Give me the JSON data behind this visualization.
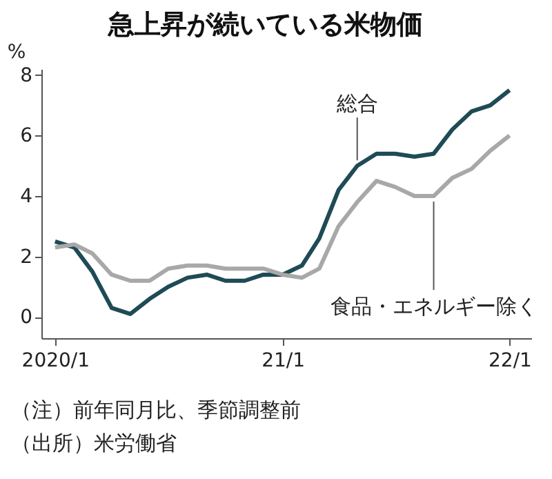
{
  "chart_data": {
    "type": "line",
    "title": "急上昇が続いている米物価",
    "ylabel": "%",
    "x": [
      "2020-01",
      "2020-02",
      "2020-03",
      "2020-04",
      "2020-05",
      "2020-06",
      "2020-07",
      "2020-08",
      "2020-09",
      "2020-10",
      "2020-11",
      "2020-12",
      "2021-01",
      "2021-02",
      "2021-03",
      "2021-04",
      "2021-05",
      "2021-06",
      "2021-07",
      "2021-08",
      "2021-09",
      "2021-10",
      "2021-11",
      "2021-12",
      "2022-01"
    ],
    "series": [
      {
        "name": "総合",
        "color": "#1e4b55",
        "values": [
          2.5,
          2.3,
          1.5,
          0.3,
          0.1,
          0.6,
          1.0,
          1.3,
          1.4,
          1.2,
          1.2,
          1.4,
          1.4,
          1.7,
          2.6,
          4.2,
          5.0,
          5.4,
          5.4,
          5.3,
          5.4,
          6.2,
          6.8,
          7.0,
          7.5
        ]
      },
      {
        "name": "食品・エネルギー除く",
        "color": "#a8a8a8",
        "values": [
          2.3,
          2.4,
          2.1,
          1.4,
          1.2,
          1.2,
          1.6,
          1.7,
          1.7,
          1.6,
          1.6,
          1.6,
          1.4,
          1.3,
          1.6,
          3.0,
          3.8,
          4.5,
          4.3,
          4.0,
          4.0,
          4.6,
          4.9,
          5.5,
          6.0
        ]
      }
    ],
    "xlim": [
      "2019-12-10",
      "2022-02-05"
    ],
    "xticks": [
      {
        "value": "2020-01",
        "label": "2020/1"
      },
      {
        "value": "2021-01",
        "label": "21/1"
      },
      {
        "value": "2022-01",
        "label": "22/1"
      }
    ],
    "ylim": [
      -0.7,
      8.2
    ],
    "yticks": [
      0,
      2,
      4,
      6,
      8
    ],
    "grid": false,
    "marker": "none",
    "line_style": "solid",
    "annotations": [
      "（注）前年同月比、季節調整前",
      "（出所）米労働省"
    ]
  }
}
